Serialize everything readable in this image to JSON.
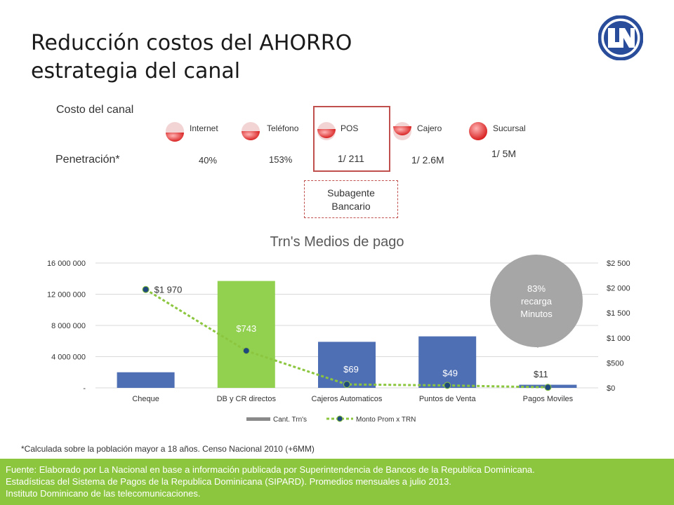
{
  "title": {
    "line1": "Reducción costos del AHORRO",
    "line2": "estrategia del canal"
  },
  "costo_label": "Costo del canal",
  "penetracion_label": "Penetración*",
  "channels": [
    {
      "name": "Internet",
      "penetration": "40%"
    },
    {
      "name": "Teléfono",
      "penetration": "153%"
    },
    {
      "name": "POS",
      "penetration": "1/ 211"
    },
    {
      "name": "Cajero",
      "penetration": "1/ 2.6M"
    },
    {
      "name": "Sucursal",
      "penetration": "1/ 5M"
    }
  ],
  "subagente": {
    "line1": "Subagente",
    "line2": "Bancario"
  },
  "callout": {
    "line1": "83%",
    "line2": "recarga",
    "line3": "Minutos"
  },
  "footnote": "*Calculada sobre la población mayor a 18 años. Censo Nacional 2010 (+6MM)",
  "source": {
    "line1": "Fuente:  Elaborado por La Nacional en  base a  información publicada por Superintendencia de Bancos de la Republica Dominicana.",
    "line2": "Estadísticas del Sistema de Pagos de la Republica Dominicana (SIPARD). Promedios mensuales a julio 2013.",
    "line3": "Instituto Dominicano de las telecomunicaciones."
  },
  "colors": {
    "bar": "#4f6fb4",
    "bar_highlight": "#92d050",
    "line": "#8cc63f",
    "marker": "#1f497d",
    "callout": "#a6a6a6",
    "source_bg": "#8cc63f"
  },
  "chart_data": {
    "type": "bar",
    "title": "Trn's  Medios de pago",
    "categories": [
      "Cheque",
      "DB y CR directos",
      "Cajeros Automaticos",
      "Puntos de Venta",
      "Pagos Moviles"
    ],
    "series": [
      {
        "name": "Cant. Trn's",
        "type": "bar",
        "axis": "left",
        "values": [
          2000000,
          13700000,
          5900000,
          6600000,
          400000
        ]
      },
      {
        "name": "Monto Prom x TRN",
        "type": "line",
        "axis": "right",
        "values": [
          1970,
          743,
          69,
          49,
          11
        ],
        "labels": [
          "$1 970",
          "$743",
          "$69",
          "$49",
          "$11"
        ]
      }
    ],
    "highlight_index": 1,
    "y_left": {
      "range": [
        0,
        16000000
      ],
      "ticks": [
        "-",
        "4 000 000",
        "8 000 000",
        "12 000 000",
        "16 000 000"
      ],
      "tick_values": [
        0,
        4000000,
        8000000,
        12000000,
        16000000
      ]
    },
    "y_right": {
      "range": [
        0,
        2500
      ],
      "ticks": [
        "$0",
        "$500",
        "$1 000",
        "$1 500",
        "$2 000",
        "$2 500"
      ],
      "tick_values": [
        0,
        500,
        1000,
        1500,
        2000,
        2500
      ]
    },
    "legend": "bottom",
    "grid": "horizontal"
  }
}
